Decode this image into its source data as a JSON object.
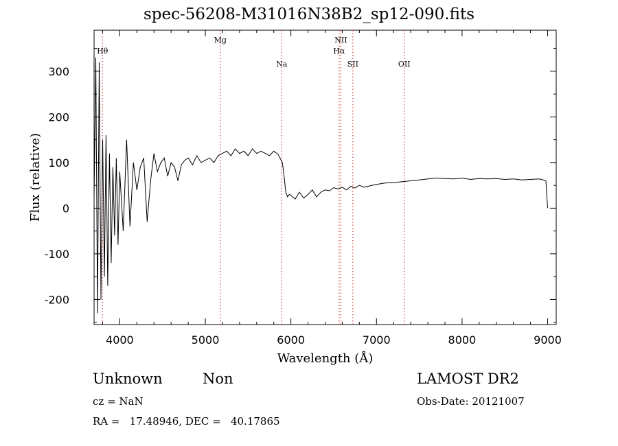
{
  "chart_data": {
    "type": "line",
    "title": "spec-56208-M31016N38B2_sp12-090.fits",
    "xlabel": "Wavelength (Å)",
    "ylabel": "Flux (relative)",
    "xlim": [
      3700,
      9100
    ],
    "ylim": [
      -255,
      390
    ],
    "xticks": [
      4000,
      5000,
      6000,
      7000,
      8000,
      9000
    ],
    "yticks": [
      -200,
      -100,
      0,
      100,
      200,
      300
    ],
    "series": [
      {
        "line_color": "#000000",
        "x": [
          3700,
          3720,
          3740,
          3760,
          3780,
          3800,
          3820,
          3840,
          3860,
          3880,
          3900,
          3920,
          3940,
          3960,
          3980,
          4000,
          4040,
          4080,
          4120,
          4160,
          4200,
          4240,
          4280,
          4320,
          4360,
          4400,
          4440,
          4480,
          4520,
          4560,
          4600,
          4640,
          4680,
          4720,
          4760,
          4800,
          4850,
          4900,
          4950,
          5000,
          5050,
          5100,
          5150,
          5200,
          5250,
          5300,
          5350,
          5400,
          5450,
          5500,
          5550,
          5600,
          5650,
          5700,
          5750,
          5800,
          5850,
          5900,
          5920,
          5940,
          5960,
          5980,
          6000,
          6050,
          6100,
          6150,
          6200,
          6250,
          6300,
          6350,
          6400,
          6450,
          6500,
          6550,
          6600,
          6650,
          6700,
          6750,
          6800,
          6850,
          6900,
          6950,
          7000,
          7100,
          7200,
          7300,
          7400,
          7500,
          7600,
          7700,
          7800,
          7900,
          8000,
          8100,
          8200,
          8300,
          8400,
          8500,
          8600,
          8700,
          8800,
          8900,
          8950,
          8980,
          9000
        ],
        "y": [
          20,
          330,
          -230,
          320,
          -200,
          150,
          -150,
          160,
          -170,
          120,
          -120,
          90,
          -60,
          110,
          -80,
          80,
          -50,
          150,
          -40,
          100,
          40,
          90,
          110,
          -30,
          60,
          120,
          80,
          100,
          110,
          70,
          100,
          90,
          60,
          95,
          105,
          110,
          95,
          115,
          100,
          105,
          110,
          100,
          115,
          120,
          125,
          115,
          130,
          120,
          125,
          115,
          130,
          120,
          125,
          120,
          115,
          125,
          118,
          100,
          70,
          35,
          25,
          30,
          28,
          20,
          35,
          22,
          30,
          40,
          25,
          35,
          40,
          38,
          45,
          42,
          46,
          40,
          48,
          44,
          50,
          46,
          48,
          50,
          52,
          55,
          56,
          58,
          60,
          62,
          64,
          66,
          65,
          64,
          66,
          63,
          65,
          64,
          65,
          63,
          64,
          62,
          63,
          64,
          62,
          60,
          0
        ]
      }
    ],
    "line_markers": [
      {
        "label": "Hθ",
        "x": 3798
      },
      {
        "label": "Mg",
        "x": 5175
      },
      {
        "label": "Na",
        "x": 5893
      },
      {
        "label": "NII",
        "x": 6584
      },
      {
        "label": "Hα",
        "x": 6563
      },
      {
        "label": "SII",
        "x": 6724
      },
      {
        "label": "OII",
        "x": 7325
      }
    ],
    "marker_color": "#d04040"
  },
  "footer": {
    "class_label": "Unknown",
    "subclass_label": "Non",
    "survey": "LAMOST DR2",
    "cz": "cz = NaN",
    "obs_date": "Obs-Date: 20121007",
    "coords": "RA =   17.48946, DEC =   40.17865"
  }
}
